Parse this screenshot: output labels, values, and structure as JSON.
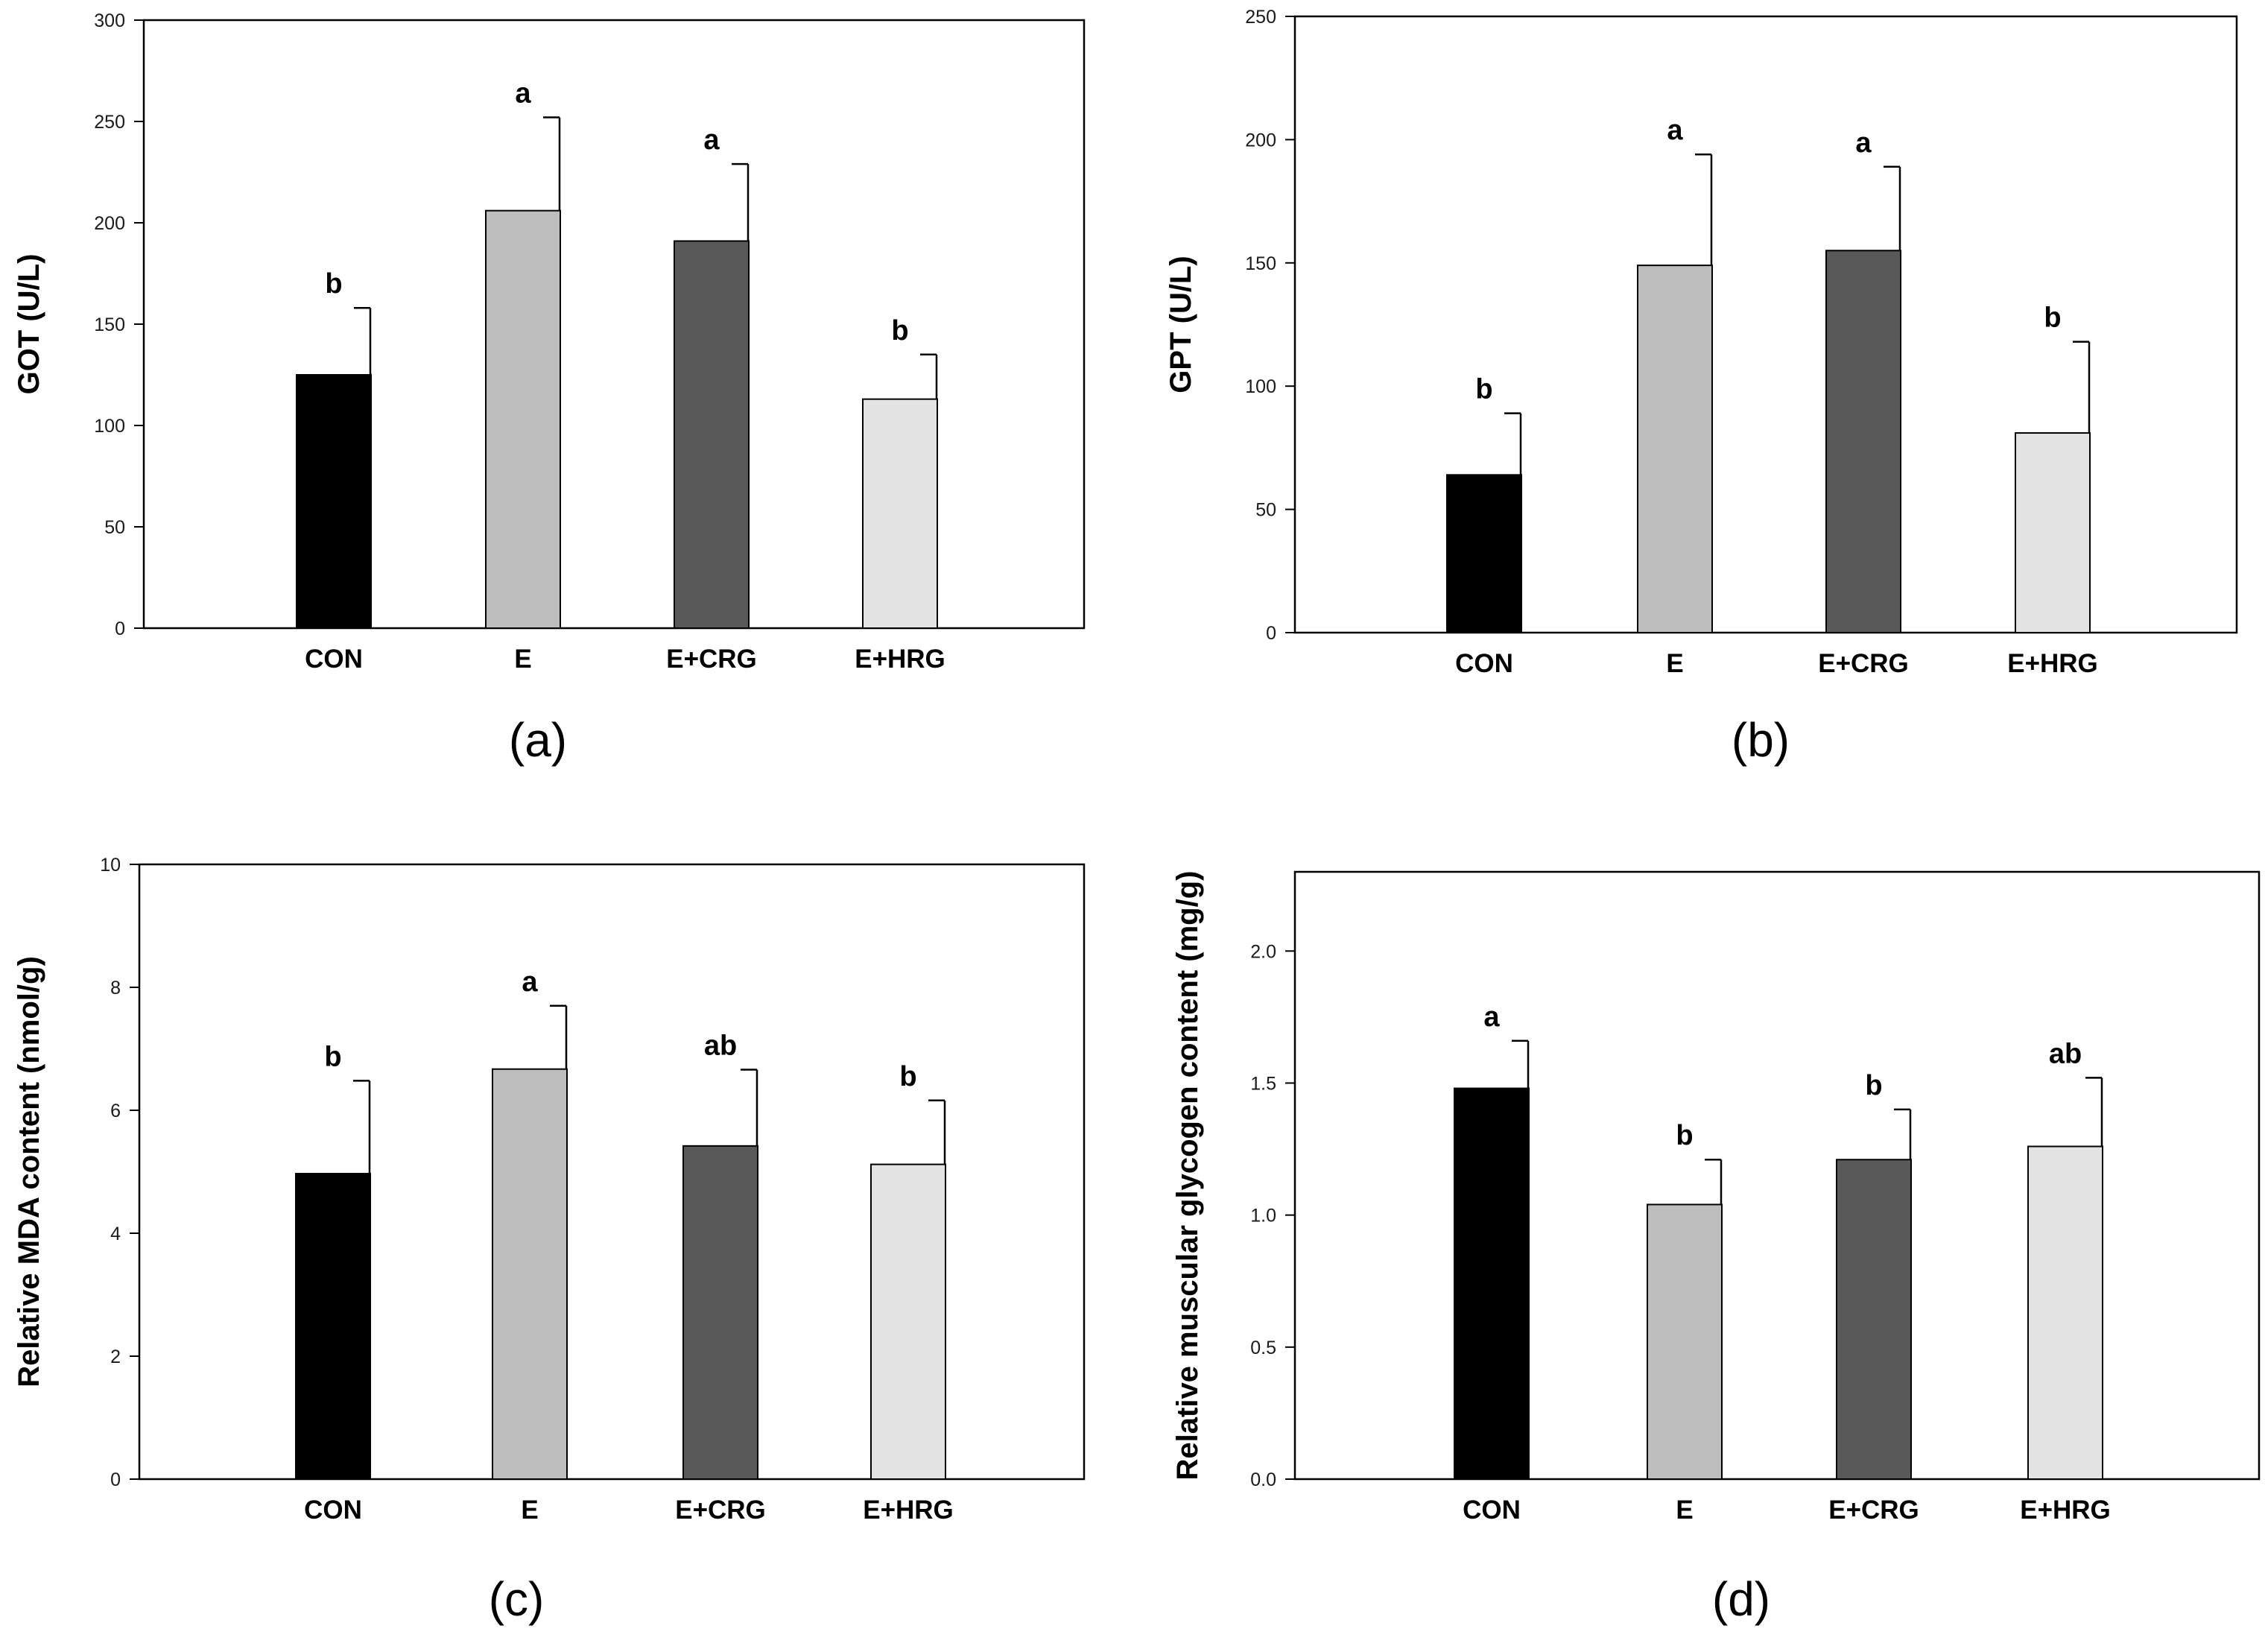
{
  "chart_data": [
    {
      "type": "bar",
      "panel_label": "(a)",
      "ylabel": "GOT (U/L)",
      "ylim": [
        0,
        300
      ],
      "yticks": [
        "0",
        "50",
        "100",
        "150",
        "200",
        "250",
        "300"
      ],
      "categories": [
        "CON",
        "E",
        "E+CRG",
        "E+HRG"
      ],
      "values": [
        125,
        206,
        191,
        113
      ],
      "errors": [
        33,
        46,
        38,
        22
      ],
      "significance": [
        "b",
        "a",
        "a",
        "b"
      ],
      "colors": [
        "#000000",
        "#bdbdbd",
        "#595959",
        "#e3e3e3"
      ]
    },
    {
      "type": "bar",
      "panel_label": "(b)",
      "ylabel": "GPT (U/L)",
      "ylim": [
        0,
        250
      ],
      "yticks": [
        "0",
        "50",
        "100",
        "150",
        "200",
        "250"
      ],
      "categories": [
        "CON",
        "E",
        "E+CRG",
        "E+HRG"
      ],
      "values": [
        64,
        149,
        155,
        81
      ],
      "errors": [
        25,
        45,
        34,
        37
      ],
      "significance": [
        "b",
        "a",
        "a",
        "b"
      ],
      "colors": [
        "#000000",
        "#bdbdbd",
        "#595959",
        "#e3e3e3"
      ]
    },
    {
      "type": "bar",
      "panel_label": "(c)",
      "ylabel": "Relative MDA content (nmol/g)",
      "ylim": [
        0,
        10
      ],
      "yticks": [
        "0",
        "2",
        "4",
        "6",
        "8",
        "10"
      ],
      "categories": [
        "CON",
        "E",
        "E+CRG",
        "E+HRG"
      ],
      "values": [
        4.97,
        6.67,
        5.42,
        5.12
      ],
      "errors": [
        1.51,
        1.03,
        1.24,
        1.04
      ],
      "significance": [
        "b",
        "a",
        "ab",
        "b"
      ],
      "colors": [
        "#000000",
        "#bdbdbd",
        "#595959",
        "#e3e3e3"
      ]
    },
    {
      "type": "bar",
      "panel_label": "(d)",
      "ylabel": "Relative muscular glycogen content (mg/g)",
      "ylim": [
        0,
        2.3
      ],
      "yticks": [
        "0.0",
        "0.5",
        "1.0",
        "1.5",
        "2.0"
      ],
      "categories": [
        "CON",
        "E",
        "E+CRG",
        "E+HRG"
      ],
      "values": [
        1.48,
        1.04,
        1.21,
        1.26
      ],
      "errors": [
        0.18,
        0.17,
        0.19,
        0.26
      ],
      "significance": [
        "a",
        "b",
        "b",
        "ab"
      ],
      "colors": [
        "#000000",
        "#bdbdbd",
        "#595959",
        "#e3e3e3"
      ]
    }
  ]
}
